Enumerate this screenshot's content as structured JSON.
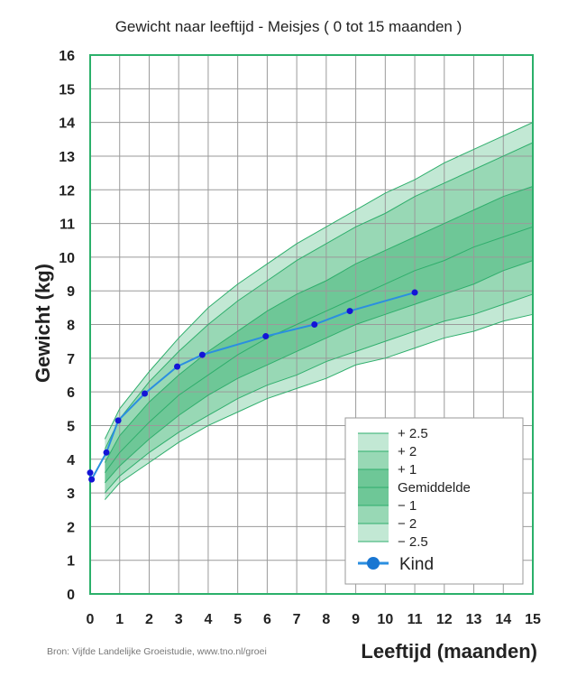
{
  "chart_data": {
    "type": "line",
    "title": "Gewicht naar leeftijd - Meisjes ( 0 tot 15 maanden )",
    "xlabel": "Leeftijd (maanden)",
    "ylabel": "Gewicht (kg)",
    "xlim": [
      0,
      15
    ],
    "ylim": [
      0,
      16
    ],
    "grid": true,
    "xticks": [
      "0",
      "1",
      "2",
      "3",
      "4",
      "5",
      "6",
      "7",
      "8",
      "9",
      "10",
      "11",
      "12",
      "13",
      "14",
      "15"
    ],
    "yticks": [
      "0",
      "1",
      "2",
      "3",
      "4",
      "5",
      "6",
      "7",
      "8",
      "9",
      "10",
      "11",
      "12",
      "13",
      "14",
      "15",
      "16"
    ],
    "reference_x": [
      0.5,
      1,
      2,
      3,
      4,
      5,
      6,
      7,
      8,
      9,
      10,
      11,
      12,
      13,
      14,
      15
    ],
    "reference_curves": [
      {
        "name": "+ 2.5",
        "values": [
          4.6,
          5.5,
          6.6,
          7.6,
          8.5,
          9.2,
          9.8,
          10.4,
          10.9,
          11.4,
          11.9,
          12.3,
          12.8,
          13.2,
          13.6,
          14.0
        ]
      },
      {
        "name": "+ 2",
        "values": [
          4.3,
          5.2,
          6.3,
          7.2,
          8.0,
          8.7,
          9.3,
          9.9,
          10.4,
          10.9,
          11.3,
          11.8,
          12.2,
          12.6,
          13.0,
          13.4
        ]
      },
      {
        "name": "+ 1",
        "values": [
          3.9,
          4.7,
          5.7,
          6.5,
          7.2,
          7.8,
          8.4,
          8.9,
          9.3,
          9.8,
          10.2,
          10.6,
          11.0,
          11.4,
          11.8,
          12.1
        ]
      },
      {
        "name": "Gemiddelde",
        "values": [
          3.6,
          4.2,
          5.1,
          5.9,
          6.5,
          7.1,
          7.6,
          8.0,
          8.4,
          8.8,
          9.2,
          9.6,
          9.9,
          10.3,
          10.6,
          10.9
        ]
      },
      {
        "name": "− 1",
        "values": [
          3.3,
          3.8,
          4.6,
          5.3,
          5.9,
          6.4,
          6.8,
          7.2,
          7.6,
          8.0,
          8.3,
          8.6,
          8.9,
          9.2,
          9.6,
          9.9
        ]
      },
      {
        "name": "− 2",
        "values": [
          3.0,
          3.5,
          4.2,
          4.8,
          5.3,
          5.8,
          6.2,
          6.5,
          6.9,
          7.2,
          7.5,
          7.8,
          8.1,
          8.3,
          8.6,
          8.9
        ]
      },
      {
        "name": "− 2.5",
        "values": [
          2.8,
          3.3,
          3.9,
          4.5,
          5.0,
          5.4,
          5.8,
          6.1,
          6.4,
          6.8,
          7.0,
          7.3,
          7.6,
          7.8,
          8.1,
          8.3
        ]
      }
    ],
    "series": [
      {
        "name": "Kind",
        "color": "#2b8fe0",
        "point_color": "#1414d6",
        "x": [
          0,
          0.05,
          0.55,
          0.95,
          1.85,
          2.95,
          3.8,
          5.95,
          7.6,
          8.8,
          11.0
        ],
        "y": [
          3.6,
          3.4,
          4.2,
          5.15,
          5.95,
          6.75,
          7.1,
          7.65,
          8.0,
          8.4,
          8.95
        ]
      }
    ],
    "legend": {
      "placement": "bottom-right",
      "entries": [
        "+ 2.5",
        "+ 2",
        "+ 1",
        "Gemiddelde",
        "− 1",
        "− 2",
        "− 2.5"
      ],
      "kind_label": "Kind"
    }
  },
  "source": "Bron: Vijfde Landelijke Groeistudie, www.tno.nl/groei",
  "colors": {
    "outer_band": "#c2e8d4",
    "mid_band": "#98d8b5",
    "inner_band": "#6ec797",
    "curve_line": "#2fae6c",
    "grid": "#9a9a9a",
    "frame": "#2bb06a"
  }
}
